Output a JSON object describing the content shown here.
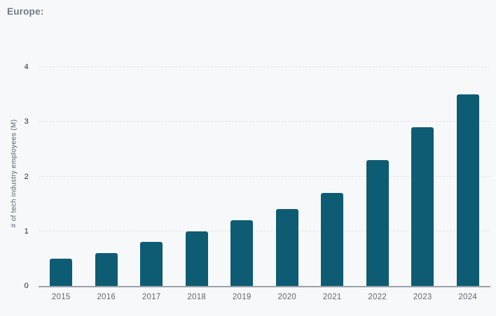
{
  "page": {
    "background_color": "#f7f8fa"
  },
  "header": {
    "title": "Europe:"
  },
  "chart_data": {
    "type": "bar",
    "title": "Europe:",
    "categories": [
      "2015",
      "2016",
      "2017",
      "2018",
      "2019",
      "2020",
      "2021",
      "2022",
      "2023",
      "2024"
    ],
    "values": [
      0.5,
      0.6,
      0.8,
      1.0,
      1.2,
      1.4,
      1.7,
      2.3,
      2.9,
      3.5
    ],
    "xlabel": "",
    "ylabel": "# of tech industry employees (M)",
    "ylim": [
      0,
      4
    ],
    "yticks": [
      0,
      1,
      2,
      3,
      4
    ],
    "grid": "horizontal-dashed",
    "legend": "none",
    "bar_color": "#0d5c73",
    "title_color": "#6e7a87",
    "axis_line_color": "#9aa1a8",
    "gridline_color": "#e1e3e7",
    "tick_label_color": "#222c38",
    "x_label_color": "#5d6774"
  }
}
